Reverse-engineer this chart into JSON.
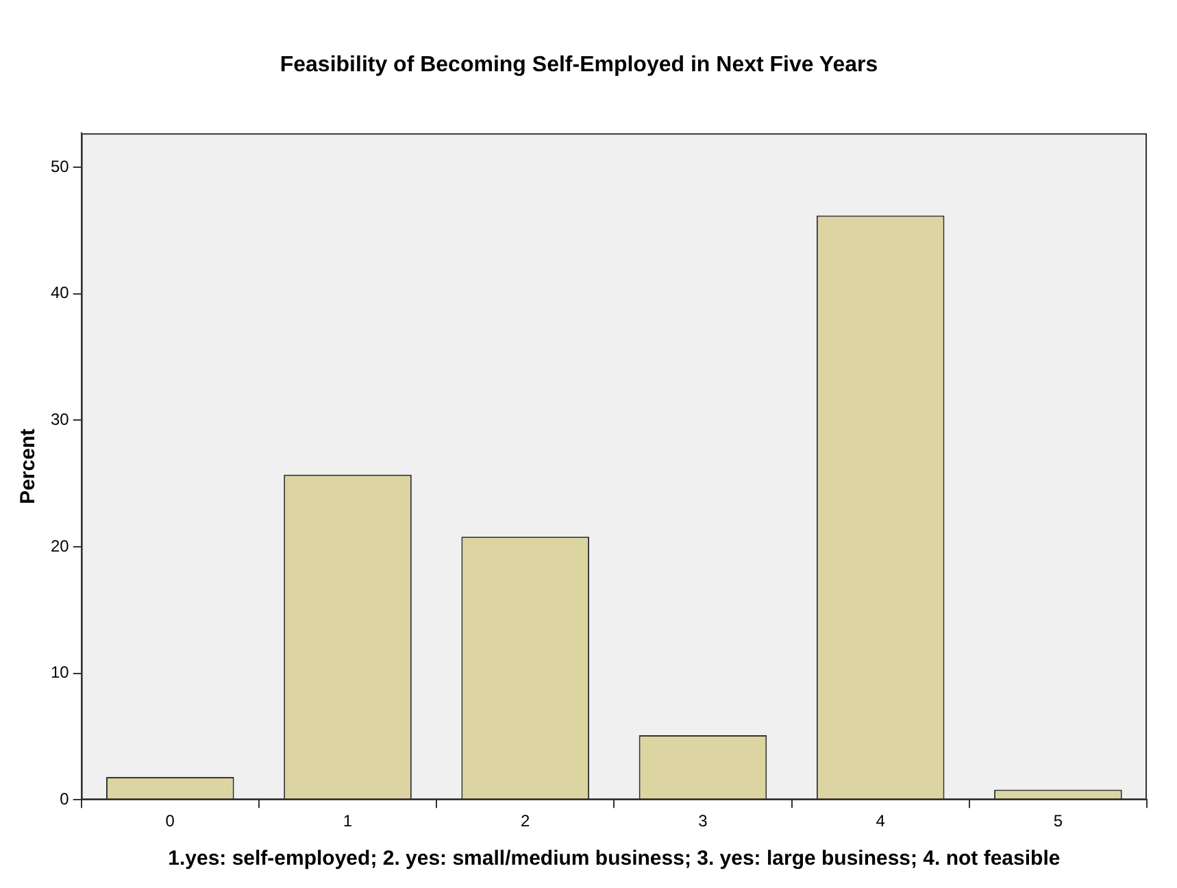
{
  "chart_data": {
    "type": "bar",
    "title": "Feasibility of Becoming Self-Employed in Next Five Years",
    "xlabel": "1.yes: self-employed; 2. yes: small/medium business; 3. yes: large business; 4. not feasible",
    "ylabel": "Percent",
    "categories": [
      "0",
      "1",
      "2",
      "3",
      "4",
      "5"
    ],
    "values": [
      1.8,
      25.7,
      20.8,
      5.1,
      46.2,
      0.8
    ],
    "color": "#dcd5a1",
    "ylim": [
      0,
      52.7
    ],
    "yticks": [
      0,
      10,
      20,
      30,
      40,
      50
    ],
    "grid": false,
    "legend": false
  }
}
